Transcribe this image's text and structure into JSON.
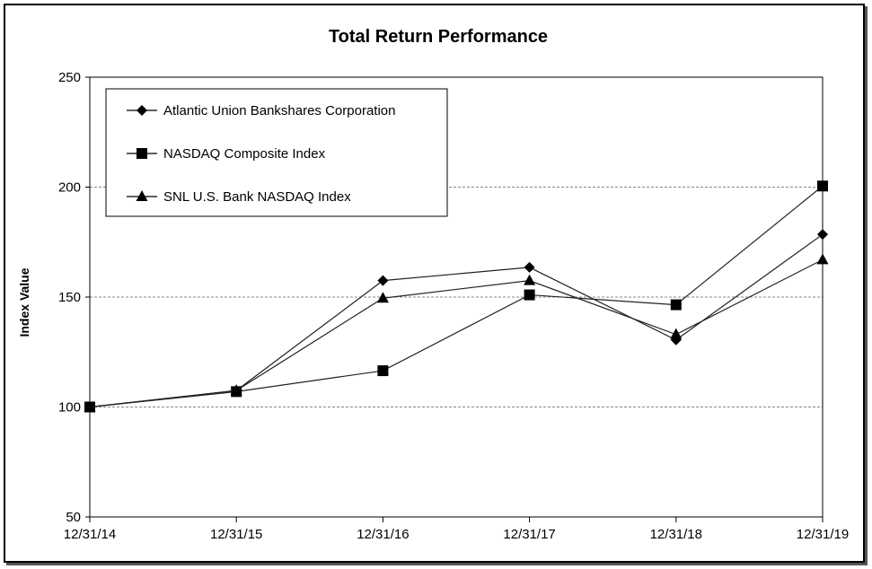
{
  "chart_data": {
    "type": "line",
    "title": "Total Return Performance",
    "xlabel": "",
    "ylabel": "Index Value",
    "categories": [
      "12/31/14",
      "12/31/15",
      "12/31/16",
      "12/31/17",
      "12/31/18",
      "12/31/19"
    ],
    "ylim": [
      50,
      250
    ],
    "yticks": [
      "250",
      "200",
      "150",
      "100",
      "50"
    ],
    "grid": true,
    "legend_position": "top-left",
    "series": [
      {
        "name": "Atlantic Union Bankshares Corporation",
        "marker": "diamond",
        "values": [
          100,
          107.5,
          157.5,
          163.5,
          130.5,
          178.5
        ]
      },
      {
        "name": "NASDAQ Composite Index",
        "marker": "square",
        "values": [
          100,
          107,
          116.5,
          151,
          146.5,
          200.5
        ]
      },
      {
        "name": "SNL U.S. Bank NASDAQ Index",
        "marker": "triangle",
        "values": [
          100,
          107.5,
          149.5,
          157.5,
          133,
          167
        ]
      }
    ]
  }
}
